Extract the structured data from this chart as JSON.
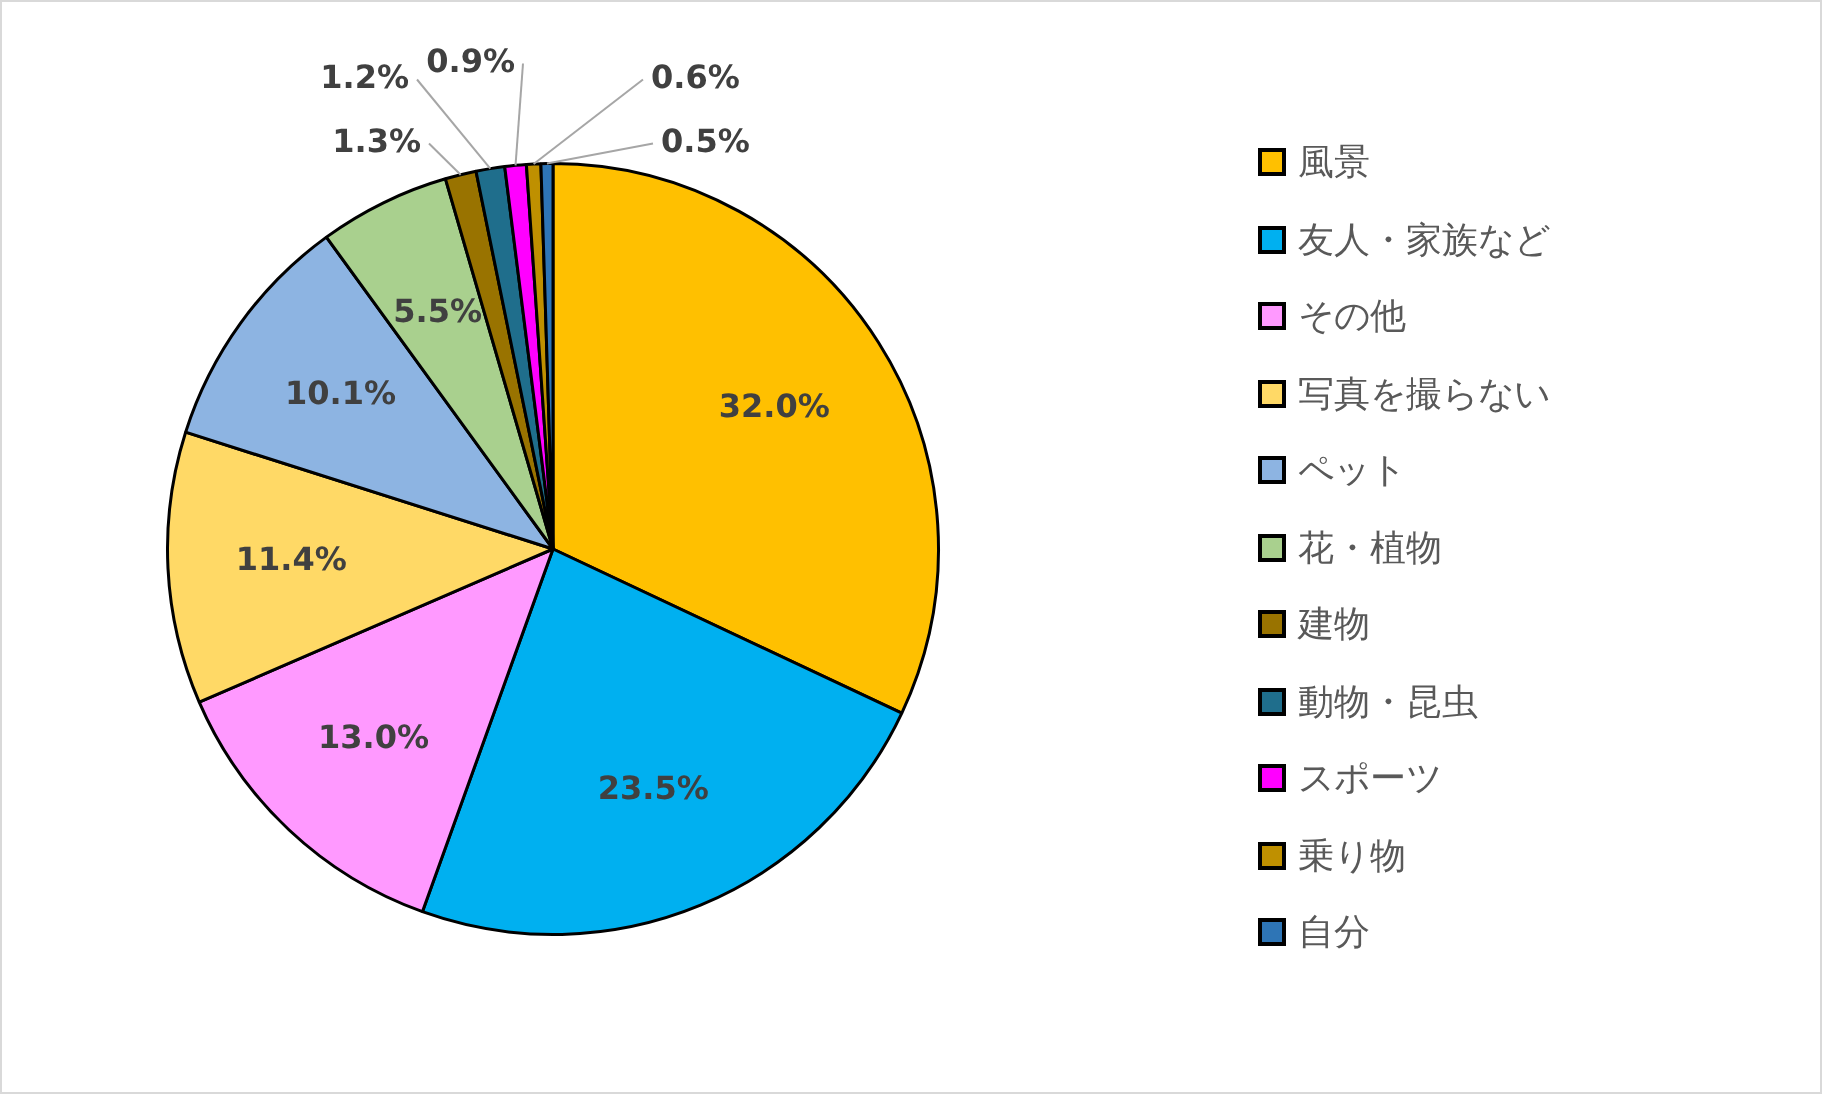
{
  "chart_data": {
    "type": "pie",
    "categories": [
      "風景",
      "友人・家族など",
      "その他",
      "写真を撮らない",
      "ペット",
      "花・植物",
      "建物",
      "動物・昆虫",
      "スポーツ",
      "乗り物",
      "自分"
    ],
    "values": [
      32.0,
      23.5,
      13.0,
      11.4,
      10.1,
      5.5,
      1.3,
      1.2,
      0.9,
      0.6,
      0.5
    ],
    "colors": [
      "#ffc000",
      "#00b0f0",
      "#ff99ff",
      "#ffd966",
      "#8db4e2",
      "#a9d08e",
      "#997300",
      "#1f6e8c",
      "#ff00ff",
      "#bf9000",
      "#2e75b6"
    ],
    "value_labels": [
      "32.0%",
      "23.5%",
      "13.0%",
      "11.4%",
      "10.1%",
      "5.5%",
      "1.3%",
      "1.2%",
      "0.9%",
      "0.6%",
      "0.5%"
    ],
    "legend": "right"
  }
}
